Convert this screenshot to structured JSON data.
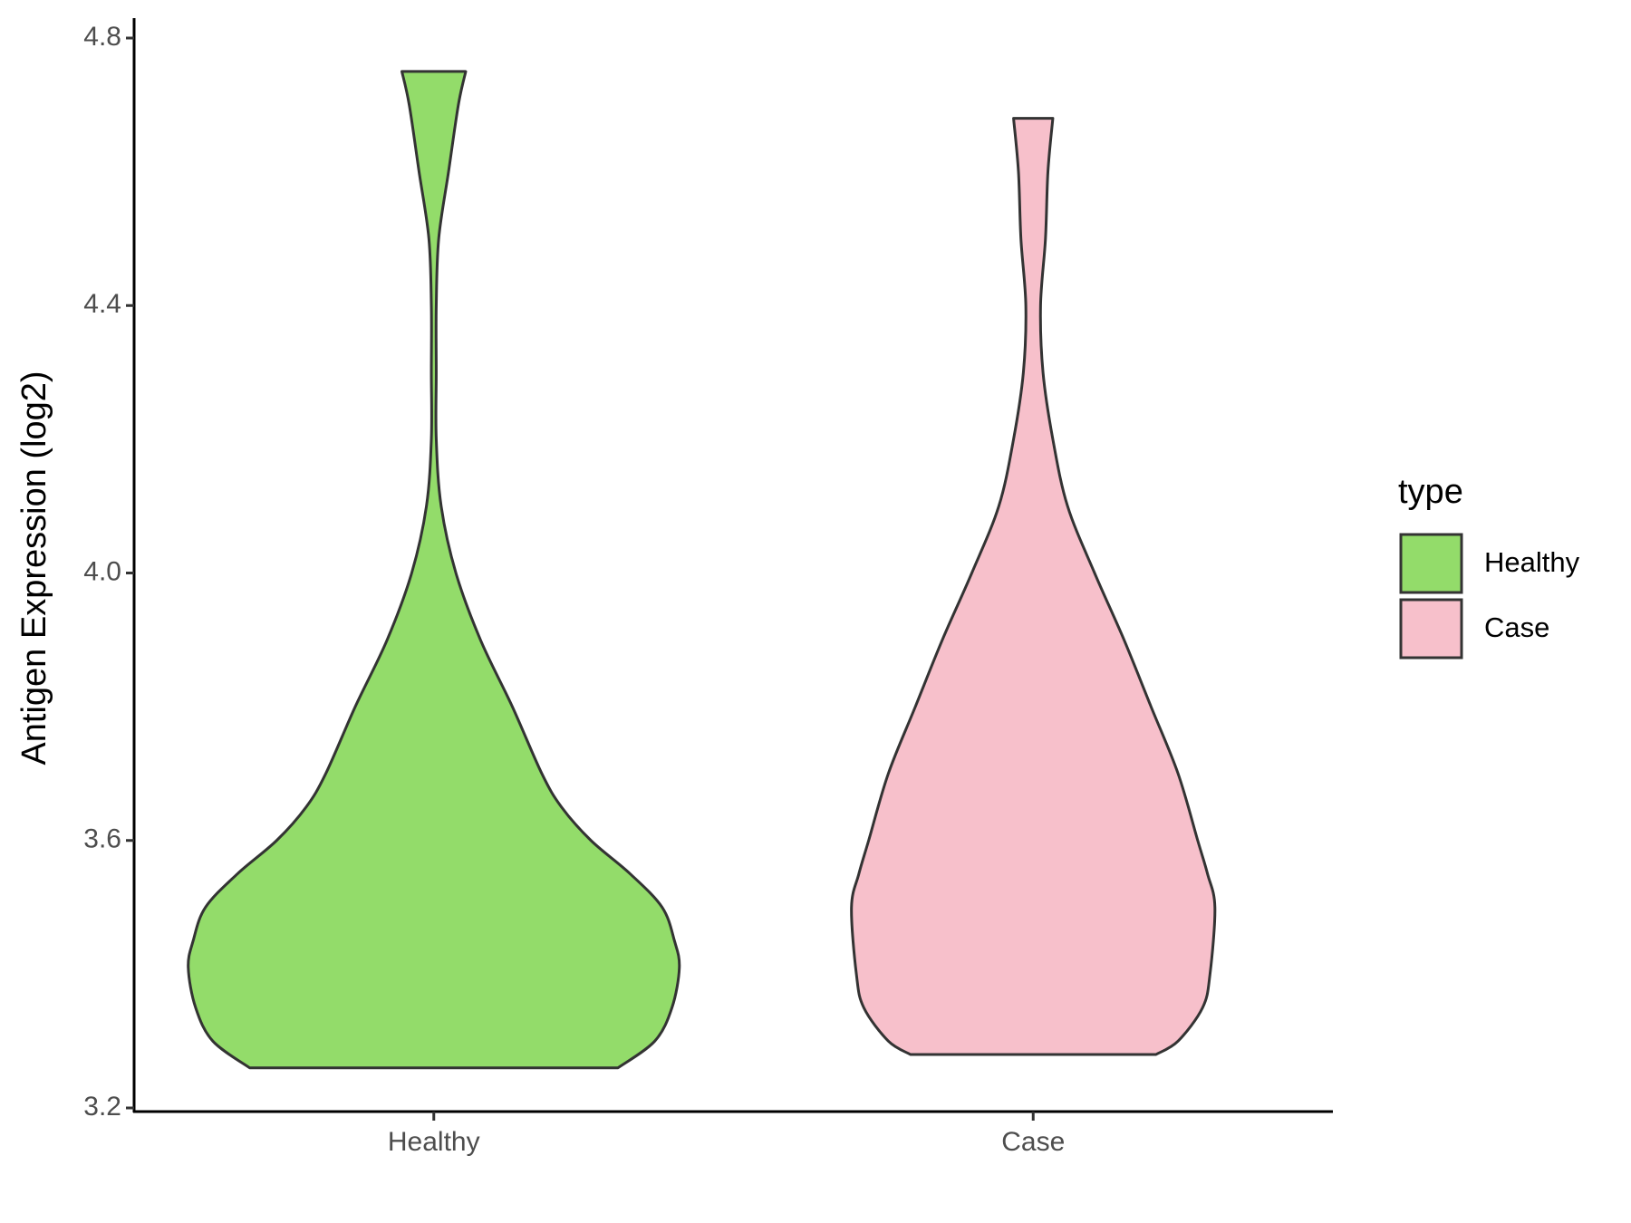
{
  "chart_data": {
    "type": "violin",
    "y_label": "Antigen Expression (log2)",
    "categories": [
      "Healthy",
      "Case"
    ],
    "legend_title": "type",
    "ylim": [
      3.2,
      4.8
    ],
    "yticks": [
      3.2,
      3.6,
      {
        "value": 4.0,
        "label": "4.0"
      },
      4.4,
      4.8
    ],
    "series": [
      {
        "name": "Healthy",
        "color": "#93dc6a",
        "y": [
          3.26,
          3.3,
          3.35,
          3.41,
          3.45,
          3.5,
          3.55,
          3.6,
          3.65,
          3.7,
          3.8,
          3.9,
          4.0,
          4.1,
          4.2,
          4.3,
          4.4,
          4.5,
          4.6,
          4.7,
          4.75
        ],
        "width": [
          0.75,
          0.9,
          0.97,
          1,
          0.98,
          0.93,
          0.8,
          0.64,
          0.52,
          0.44,
          0.32,
          0.19,
          0.09,
          0.03,
          0.01,
          0.01,
          0.01,
          0.02,
          0.06,
          0.1,
          0.13
        ]
      },
      {
        "name": "Case",
        "color": "#f7c0cb",
        "y": [
          3.28,
          3.3,
          3.35,
          3.4,
          3.5,
          3.55,
          3.6,
          3.7,
          3.8,
          3.9,
          4.0,
          4.1,
          4.2,
          4.3,
          4.4,
          4.5,
          4.6,
          4.68
        ],
        "width": [
          0.5,
          0.59,
          0.69,
          0.72,
          0.74,
          0.71,
          0.67,
          0.59,
          0.48,
          0.37,
          0.25,
          0.14,
          0.08,
          0.04,
          0.03,
          0.05,
          0.06,
          0.08
        ]
      }
    ]
  }
}
